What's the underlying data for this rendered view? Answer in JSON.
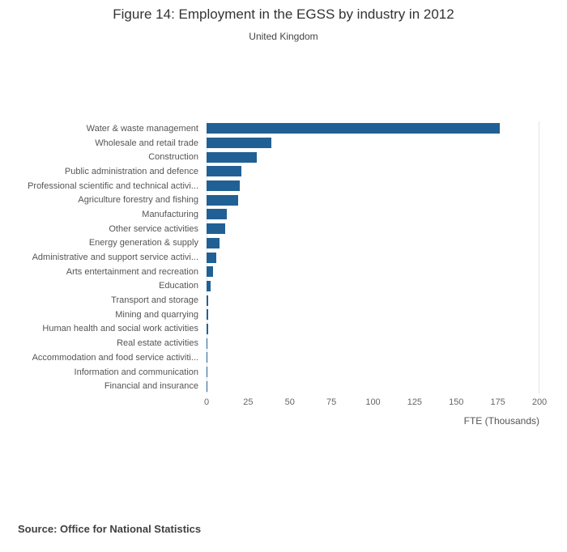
{
  "title": "Figure 14: Employment in the EGSS by industry in 2012",
  "subtitle": "United Kingdom",
  "source": "Source: Office for National Statistics",
  "colors": {
    "bar": "#206095",
    "axis_line": "#e3e3e3",
    "tick_text": "#666666",
    "label_text": "#555555"
  },
  "chart_data": {
    "type": "bar",
    "orientation": "horizontal",
    "title": "Figure 14: Employment in the EGSS by industry in 2012",
    "subtitle": "United Kingdom",
    "xlabel": "FTE (Thousands)",
    "xlim": [
      0,
      200
    ],
    "xticks": [
      0,
      25,
      50,
      75,
      100,
      125,
      150,
      175,
      200
    ],
    "grid": "minimal",
    "legend": "none",
    "categories": [
      "Water & waste management",
      "Wholesale and retail trade",
      "Construction",
      "Public administration and defence",
      "Professional scientific and technical activi...",
      "Agriculture forestry and fishing",
      "Manufacturing",
      "Other service activities",
      "Energy generation & supply",
      "Administrative and support service activi...",
      "Arts entertainment and recreation",
      "Education",
      "Transport and storage",
      "Mining and quarrying",
      "Human health and social work activities",
      "Real estate activities",
      "Accommodation and food service activiti...",
      "Information and communication",
      "Financial and insurance"
    ],
    "values": [
      176,
      39,
      30,
      21,
      20,
      19,
      12,
      11,
      8,
      6,
      4,
      2.5,
      1,
      1,
      1.2,
      0.4,
      0.3,
      0.3,
      0.2
    ]
  }
}
